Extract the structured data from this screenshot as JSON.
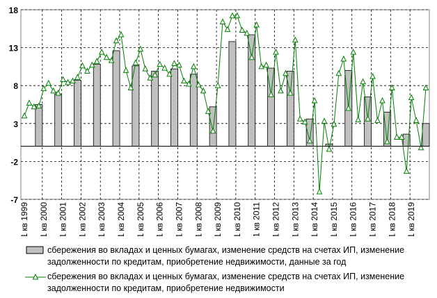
{
  "chart_data": {
    "type": "bar-line",
    "categories": [
      "1 кв 1999",
      null,
      null,
      null,
      "1 кв 2000",
      null,
      null,
      null,
      "1 кв 2001",
      null,
      null,
      null,
      "1 кв 2002",
      null,
      null,
      null,
      "1 кв 2003",
      null,
      null,
      null,
      "1 кв 2004",
      null,
      null,
      null,
      "1 кв 2005",
      null,
      null,
      null,
      "1 кв 2006",
      null,
      null,
      null,
      "1 кв 2007",
      null,
      null,
      null,
      "1 кв 2008",
      null,
      null,
      null,
      "1 кв 2009",
      null,
      null,
      null,
      "1 кв 2010",
      null,
      null,
      null,
      "1 кв 2011",
      null,
      null,
      null,
      "1 кв 2012",
      null,
      null,
      null,
      "1 кв 2013",
      null,
      null,
      null,
      "1 кв 2014",
      null,
      null,
      null,
      "1 кв 2015",
      null,
      null,
      null,
      "1 кв 2016",
      null,
      null,
      null,
      "1 кв 2017",
      null,
      null,
      null,
      "1 кв 2018",
      null,
      null,
      null,
      "1 кв 2019",
      null,
      null,
      null
    ],
    "series": [
      {
        "name": "сбережения во вкладах и ценных бумагах, изменение средств на счетах ИП, изменение задолженности по кредитам, приобретение недвижимости, данные за год",
        "type": "bar",
        "color": "#c0c0c0",
        "values": [
          null,
          null,
          null,
          5.5,
          null,
          null,
          null,
          6.9,
          null,
          null,
          null,
          8.7,
          null,
          null,
          null,
          10.8,
          null,
          null,
          null,
          12.6,
          null,
          null,
          null,
          10.6,
          null,
          null,
          null,
          9.9,
          null,
          null,
          null,
          10.2,
          null,
          null,
          null,
          9.5,
          null,
          null,
          null,
          5.2,
          null,
          null,
          null,
          13.8,
          null,
          null,
          null,
          14.7,
          null,
          null,
          null,
          10.3,
          null,
          null,
          null,
          9.9,
          null,
          null,
          null,
          3.6,
          null,
          null,
          null,
          0.3,
          null,
          null,
          null,
          10.0,
          null,
          null,
          null,
          6.5,
          null,
          null,
          null,
          4.5,
          null,
          null,
          null,
          1.6,
          null,
          null,
          null,
          3.0
        ]
      },
      {
        "name": "сбережения во вкладах и ценных бумагах, изменение средств на счетах ИП, изменение задолженности по кредитам, приобретение недвижимости",
        "type": "line",
        "color": "#008000",
        "values": [
          4.0,
          5.7,
          5.2,
          5.3,
          7.6,
          8.3,
          7.3,
          7.0,
          8.8,
          8.4,
          8.6,
          9.1,
          10.6,
          9.9,
          10.7,
          11.2,
          12.4,
          11.7,
          11.3,
          13.9,
          14.7,
          10.0,
          7.7,
          11.0,
          12.8,
          10.2,
          9.0,
          9.4,
          10.8,
          10.3,
          9.5,
          10.9,
          10.7,
          8.6,
          8.2,
          10.5,
          8.1,
          7.3,
          4.6,
          2.0,
          8.0,
          16.4,
          15.4,
          17.2,
          17.2,
          15.3,
          14.9,
          11.7,
          16.0,
          10.5,
          10.7,
          6.8,
          12.4,
          7.3,
          9.6,
          7.0,
          14.0,
          3.6,
          3.2,
          0.7,
          6.0,
          -6.0,
          3.3,
          -0.4,
          2.9,
          9.6,
          11.5,
          5.0,
          12.4,
          3.5,
          8.5,
          3.6,
          9.2,
          3.4,
          6.0,
          0.6,
          7.7,
          1.2,
          1.2,
          -3.3,
          6.4,
          3.4,
          -0.2,
          7.7
        ]
      }
    ],
    "ylim": [
      -7,
      18
    ],
    "yticks": [
      -7,
      -2,
      3,
      8,
      13,
      18
    ],
    "grid": true
  }
}
